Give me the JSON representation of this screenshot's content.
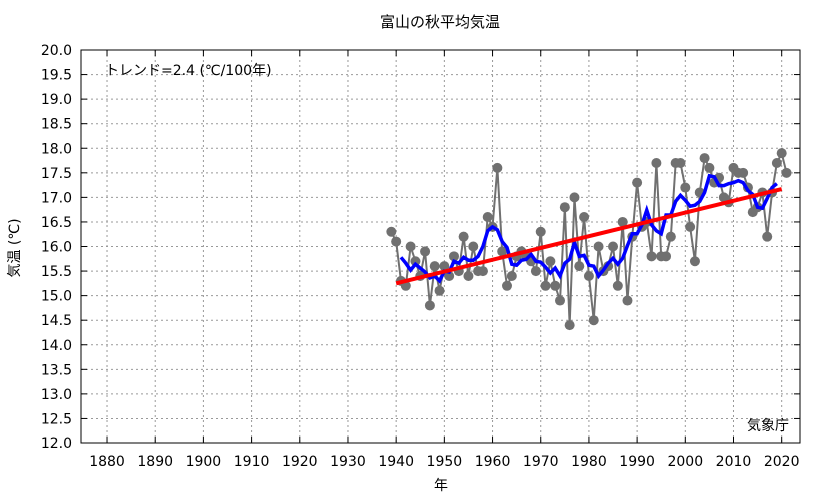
{
  "chart_data": {
    "type": "line",
    "title": "富山の秋平均気温",
    "xlabel": "年",
    "ylabel": "気温 (℃)",
    "xlim": [
      1874.6,
      2023.8
    ],
    "ylim": [
      12.0,
      20.0
    ],
    "x_ticks": [
      1880,
      1890,
      1900,
      1910,
      1920,
      1930,
      1940,
      1950,
      1960,
      1970,
      1980,
      1990,
      2000,
      2010,
      2020
    ],
    "y_ticks": [
      "12.0",
      "12.5",
      "13.0",
      "13.5",
      "14.0",
      "14.5",
      "15.0",
      "15.5",
      "16.0",
      "16.5",
      "17.0",
      "17.5",
      "18.0",
      "18.5",
      "19.0",
      "19.5",
      "20.0"
    ],
    "grid": true,
    "annotations": {
      "trend": "トレンド=2.4 (℃/100年)",
      "source": "気象庁"
    },
    "colors": {
      "annual": "#707070",
      "moving_average": "#0000ff",
      "trend": "#ff0000"
    },
    "series": [
      {
        "x": [
          1939,
          1940,
          1941,
          1942,
          1943,
          1944,
          1945,
          1946,
          1947,
          1948,
          1949,
          1950,
          1951,
          1952,
          1953,
          1954,
          1955,
          1956,
          1957,
          1958,
          1959,
          1960,
          1961,
          1962,
          1963,
          1964,
          1965,
          1966,
          1967,
          1968,
          1969,
          1970,
          1971,
          1972,
          1973,
          1974,
          1975,
          1976,
          1977,
          1978,
          1979,
          1980,
          1981,
          1982,
          1983,
          1984,
          1985,
          1986,
          1987,
          1988,
          1989,
          1990,
          1991,
          1992,
          1993,
          1994,
          1995,
          1996,
          1997,
          1998,
          1999,
          2000,
          2001,
          2002,
          2003,
          2004,
          2005,
          2006,
          2007,
          2008,
          2009,
          2010,
          2011,
          2012,
          2013,
          2014,
          2015,
          2016,
          2017,
          2018,
          2019,
          2020,
          2021
        ],
        "y": [
          16.3,
          16.1,
          15.3,
          15.2,
          16.0,
          15.7,
          15.4,
          15.9,
          14.8,
          15.6,
          15.1,
          15.6,
          15.4,
          15.8,
          15.5,
          16.2,
          15.4,
          16.0,
          15.5,
          15.5,
          16.6,
          16.4,
          17.6,
          15.9,
          15.2,
          15.4,
          15.8,
          15.9,
          15.8,
          15.7,
          15.5,
          16.3,
          15.2,
          15.7,
          15.2,
          14.9,
          16.8,
          14.4,
          17.0,
          15.6,
          16.6,
          15.4,
          14.5,
          16.0,
          15.5,
          15.6,
          16.0,
          15.2,
          16.5,
          14.9,
          16.2,
          17.3,
          16.4,
          16.5,
          15.8,
          17.7,
          15.8,
          15.8,
          16.2,
          17.7,
          17.7,
          17.2,
          16.4,
          15.7,
          17.1,
          17.8,
          17.6,
          17.3,
          17.4,
          17.0,
          16.9,
          17.6,
          17.5,
          17.5,
          17.2,
          16.7,
          16.8,
          17.1,
          16.2,
          17.1,
          17.7,
          17.9,
          17.5
        ]
      }
    ],
    "moving_average_window": 5,
    "trend_line": {
      "x": [
        1940,
        2020
      ],
      "y": [
        15.25,
        17.17
      ]
    }
  }
}
